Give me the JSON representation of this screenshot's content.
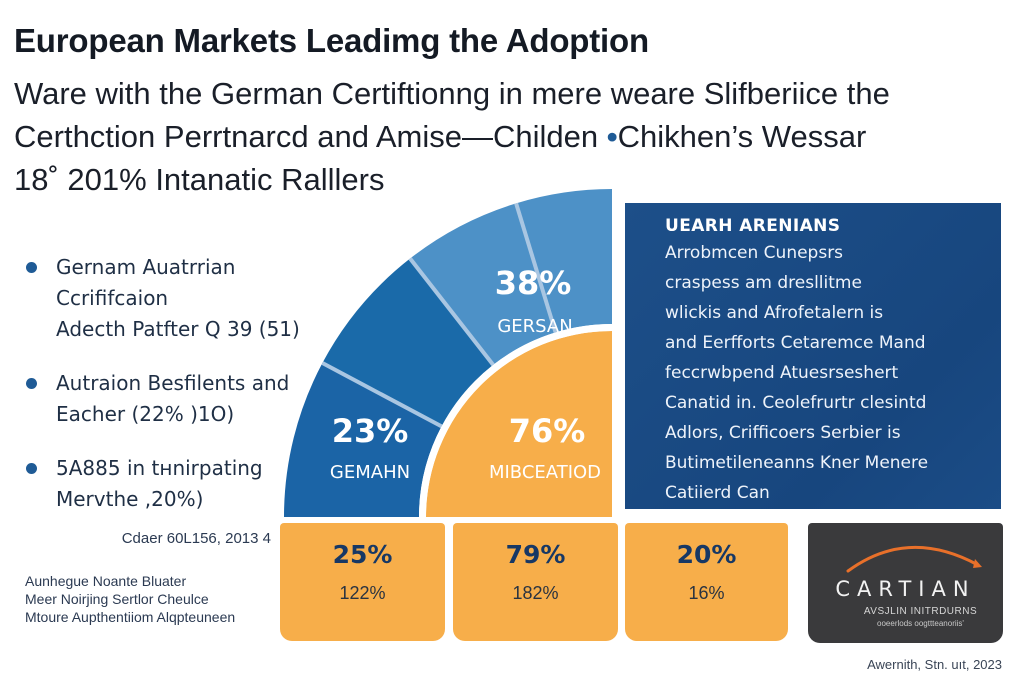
{
  "header": {
    "title": "European Markets Leadimg the Adoption",
    "subtitle_line1": "Ware with the German Certiftionng in mere weare Slifberiice the",
    "subtitle_line2a": "Certhction Perrtnarcd and Amise—Childen ",
    "subtitle_dot": "•",
    "subtitle_line2b": "Chikhen’s Wessar",
    "subtitle_line3": "18˚ 201% Intanatic Ralllers"
  },
  "bullets": [
    {
      "icon": "bullet-dot",
      "text": "Gernam Auatrrian Ccrififcaion\nAdecth Patfter  Q 39  (51)"
    },
    {
      "icon": "bullet-dot",
      "text": "Autraion Besfilents and\nEacher (22% )1O)"
    },
    {
      "icon": "bullet-dot",
      "text": "5A885 in tнnirpating\nMervthe ,20%)"
    }
  ],
  "source": {
    "date": "Cdaer 60L156,  2013 4",
    "lines": [
      "Aunhegue Noante Bluater",
      "Meer Noirjing Sertlor Cheulce",
      "Mtoure Aupthentiiom Alqpteuneen"
    ]
  },
  "info_panel": {
    "title": "UEARH ARENIANS",
    "lines": [
      "Arrobmcen Cunepsrs",
      "craspess am dresllitme",
      "wlickis  and Afrofetalern is",
      "and Eerfforts  Cetaremce Mand",
      "feccrwbpend Atuesrseshert",
      "Canatid in. Ceolefrurtr clesintd",
      "Adlors, Crifficoers Serbier is",
      "Butimetileneanns Kner Menere",
      "Catiierd Can"
    ]
  },
  "stat_cards": [
    {
      "main": "25%",
      "sub": "122%"
    },
    {
      "main": "79%",
      "sub": "182%"
    },
    {
      "main": "20%",
      "sub": "16%"
    }
  ],
  "logo": {
    "name": "CARTIAN",
    "sub1": "AVSJLIN INITRDURNS",
    "sub2": "ooeerlods oogttteanoriis'",
    "arc_color": "#e8702a"
  },
  "footer": {
    "credit": "Awernith, Stn. uıt, 2023"
  },
  "colors": {
    "outer_dark": "#1b64a6",
    "outer_light": "#4d91c7",
    "inner_orange": "#f7ae4a",
    "panel_navy": "#1a4b84",
    "divider": "#a9c6e2"
  },
  "chart_data": {
    "type": "pie",
    "subtype": "quarter-donut",
    "title": "European Markets Leadimg the Adoption",
    "outer_ring": [
      {
        "label": "GEMAHN",
        "value": 23,
        "display": "23%",
        "color": "#1b64a6"
      },
      {
        "label": "",
        "value": 0,
        "display": "",
        "color": "#1a6aa9"
      },
      {
        "label": "GERSAN",
        "value": 38,
        "display": "38%",
        "color": "#4d91c7"
      }
    ],
    "inner": {
      "label": "MIBCEATIOD",
      "value": 76,
      "display": "76%",
      "color": "#f7ae4a"
    },
    "bottom_values": [
      {
        "main": 25,
        "sub": 122
      },
      {
        "main": 79,
        "sub": 182
      },
      {
        "main": 20,
        "sub": 16
      }
    ]
  }
}
